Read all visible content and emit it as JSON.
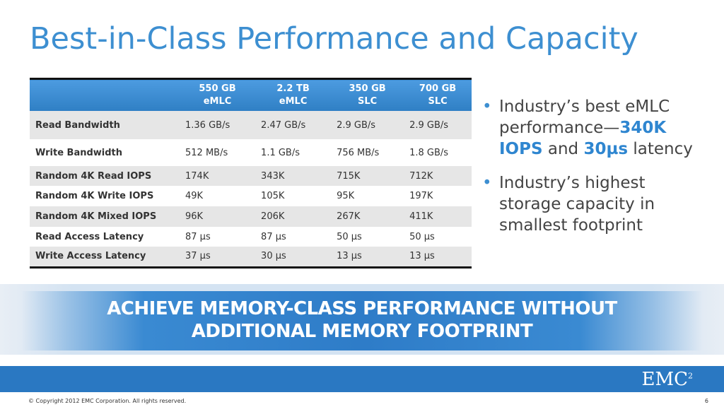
{
  "title": "Best-in-Class Performance and Capacity",
  "table": {
    "header": [
      [
        "550 GB",
        "eMLC"
      ],
      [
        "2.2 TB",
        "eMLC"
      ],
      [
        "350 GB",
        "SLC"
      ],
      [
        "700 GB",
        "SLC"
      ]
    ],
    "rows": [
      [
        "Read Bandwidth",
        "1.36 GB/s",
        "2.47 GB/s",
        "2.9 GB/s",
        "2.9 GB/s"
      ],
      [
        "Write Bandwidth",
        "512 MB/s",
        "1.1 GB/s",
        "756 MB/s",
        "1.8 GB/s"
      ],
      [
        "Random 4K Read IOPS",
        "174K",
        "343K",
        "715K",
        "712K"
      ],
      [
        "Random 4K Write IOPS",
        "49K",
        "105K",
        "95K",
        "197K"
      ],
      [
        "Random 4K Mixed IOPS",
        "96K",
        "206K",
        "267K",
        "411K"
      ],
      [
        "Read Access Latency",
        "87 µs",
        "87 µs",
        "50 µs",
        "50 µs"
      ],
      [
        "Write Access Latency",
        "37 µs",
        "30 µs",
        "13 µs",
        "13 µs"
      ]
    ]
  },
  "bullets": [
    [
      {
        "text": "Industry’s best eMLC performance—"
      },
      {
        "text": "340K IOPS",
        "strong": true
      },
      {
        "text": " and "
      },
      {
        "text": "30µs",
        "strong": true
      },
      {
        "text": " latency"
      }
    ],
    [
      {
        "text": "Industry’s highest storage capacity in smallest footprint"
      }
    ]
  ],
  "banner": [
    "ACHIEVE MEMORY-CLASS PERFORMANCE WITHOUT",
    "ADDITIONAL MEMORY FOOTPRINT"
  ],
  "logo": {
    "text": "EMC",
    "superscript": "2"
  },
  "footer": {
    "copyright": "© Copyright 2012 EMC Corporation. All rights reserved.",
    "page": "6"
  }
}
